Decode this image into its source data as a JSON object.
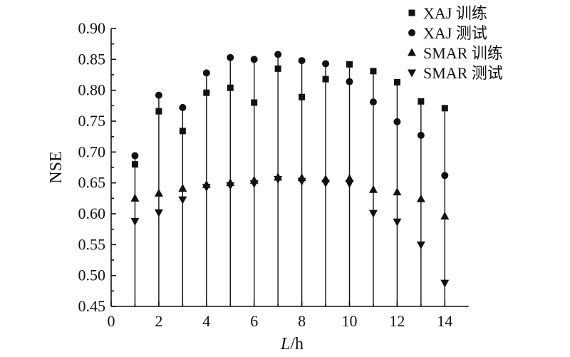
{
  "chart_data": {
    "type": "scatter",
    "xlabel_italic": "L",
    "xlabel_unit": "/h",
    "ylabel": "NSE",
    "xlim": [
      0,
      15
    ],
    "ylim": [
      0.45,
      0.9
    ],
    "x_ticks": [
      0,
      2,
      4,
      6,
      8,
      10,
      12,
      14
    ],
    "x_tick_labels": [
      "0",
      "2",
      "4",
      "6",
      "8",
      "10",
      "12",
      "14"
    ],
    "y_ticks": [
      0.45,
      0.5,
      0.55,
      0.6,
      0.65,
      0.7,
      0.75,
      0.8,
      0.85,
      0.9
    ],
    "y_tick_labels": [
      "0.45",
      "0.50",
      "0.55",
      "0.60",
      "0.65",
      "0.70",
      "0.75",
      "0.80",
      "0.85",
      "0.90"
    ],
    "legend_position": "top-right",
    "stems": true,
    "x": [
      1,
      2,
      3,
      4,
      5,
      6,
      7,
      8,
      9,
      10,
      11,
      12,
      13,
      14
    ],
    "series": [
      {
        "name": "XAJ 训练",
        "marker": "square",
        "values": [
          0.68,
          0.766,
          0.734,
          0.796,
          0.804,
          0.78,
          0.835,
          0.789,
          0.818,
          0.842,
          0.831,
          0.813,
          0.782,
          0.771
        ]
      },
      {
        "name": "XAJ 测试",
        "marker": "circle",
        "values": [
          0.694,
          0.792,
          0.772,
          0.828,
          0.853,
          0.85,
          0.858,
          0.848,
          0.843,
          0.814,
          0.781,
          0.749,
          0.727,
          0.662
        ]
      },
      {
        "name": "SMAR 训练",
        "marker": "triangle-up",
        "values": [
          0.625,
          0.633,
          0.641,
          0.647,
          0.65,
          0.654,
          0.659,
          0.658,
          0.656,
          0.657,
          0.639,
          0.635,
          0.624,
          0.596
        ]
      },
      {
        "name": "SMAR 测试",
        "marker": "triangle-down",
        "values": [
          0.588,
          0.602,
          0.623,
          0.643,
          0.646,
          0.649,
          0.656,
          0.653,
          0.65,
          0.649,
          0.601,
          0.587,
          0.55,
          0.488
        ]
      }
    ]
  }
}
